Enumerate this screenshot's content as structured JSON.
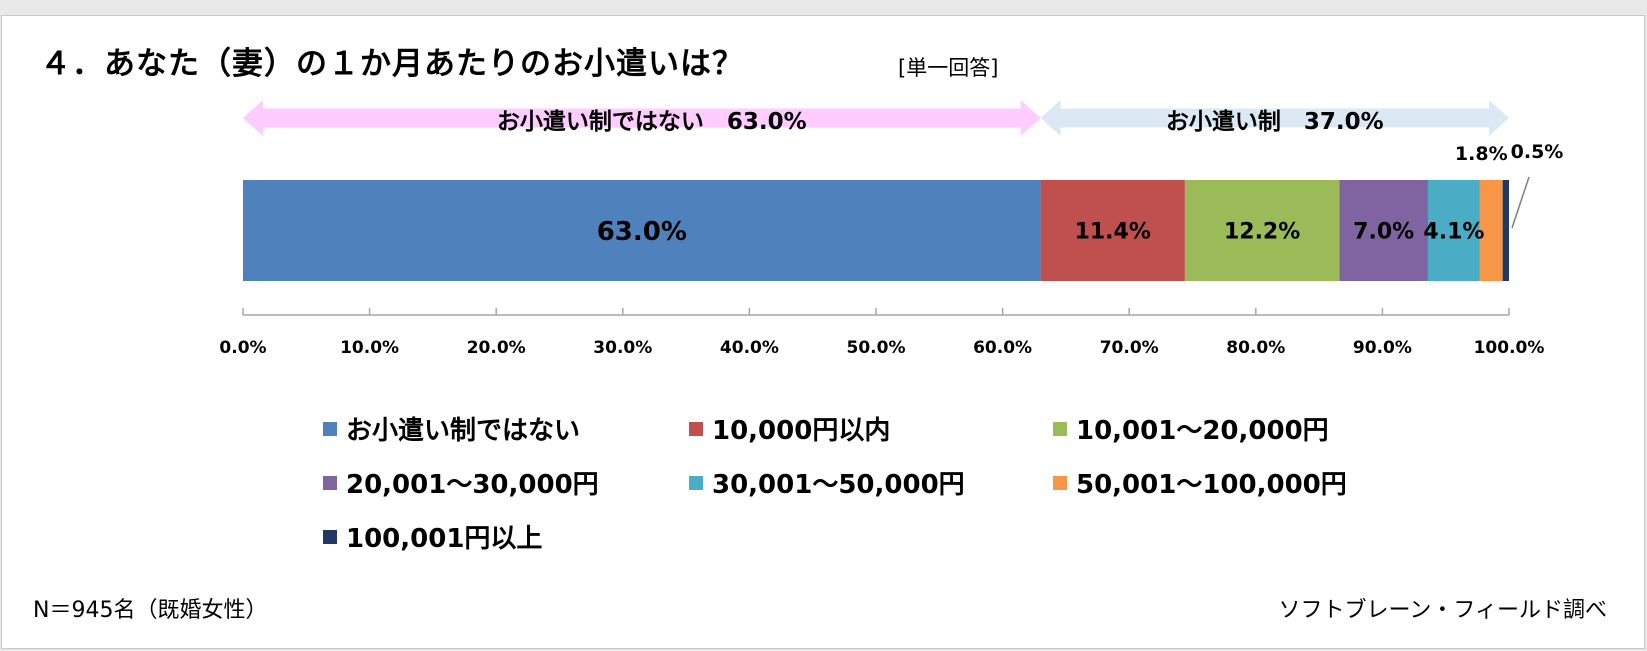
{
  "title": "４．あなた（妻）の１か月あたりのお小遣いは？",
  "subtitle": "[単一回答]",
  "ranges": {
    "left": {
      "label": "お小遣い制ではない　63.0%",
      "from": 0,
      "to": 63.0,
      "color": "#ffccff"
    },
    "right": {
      "label": "お小遣い制　37.0%",
      "from": 63.0,
      "to": 100.0,
      "color": "#dde8f5"
    }
  },
  "chart_data": {
    "type": "bar",
    "orientation": "horizontal-stacked",
    "series": [
      {
        "name": "お小遣い制ではない",
        "value": 63.0,
        "label": "63.0%",
        "color": "#4f81bd"
      },
      {
        "name": "10,000円以内",
        "value": 11.4,
        "label": "11.4%",
        "color": "#c0504d"
      },
      {
        "name": "10,001～20,000円",
        "value": 12.2,
        "label": "12.2%",
        "color": "#9bbb59"
      },
      {
        "name": "20,001～30,000円",
        "value": 7.0,
        "label": "7.0%",
        "color": "#8064a2"
      },
      {
        "name": "30,001～50,000円",
        "value": 4.1,
        "label": "4.1%",
        "color": "#4bacc6"
      },
      {
        "name": "50,001～100,000円",
        "value": 1.8,
        "label": "1.8%",
        "color": "#f79646"
      },
      {
        "name": "100,001円以上",
        "value": 0.5,
        "label": "0.5%",
        "color": "#1f3864"
      }
    ],
    "xlim": [
      0,
      100
    ],
    "xticks": [
      "0.0%",
      "10.0%",
      "20.0%",
      "30.0%",
      "40.0%",
      "50.0%",
      "60.0%",
      "70.0%",
      "80.0%",
      "90.0%",
      "100.0%"
    ],
    "legend_position": "bottom",
    "grid": false
  },
  "footer": {
    "sample": "N＝945名（既婚女性）",
    "source": "ソフトブレーン・フィールド調べ"
  }
}
